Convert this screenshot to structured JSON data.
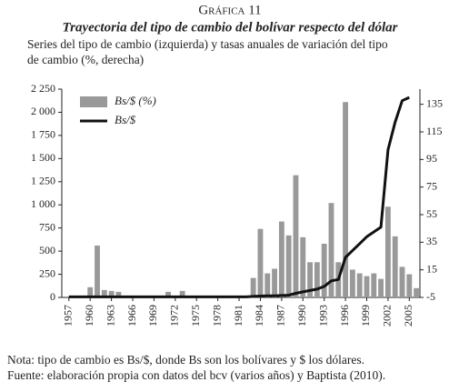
{
  "chart_data": {
    "type": "bar_line",
    "label": "Gráfica 11",
    "title": "Trayectoria del tipo de cambio del bolívar respecto del dólar",
    "subtitle": [
      "Series del tipo de cambio (izquierda) y tasas anuales de variación del tipo",
      "de cambio (%, derecha)"
    ],
    "notes": [
      "Nota: tipo de cambio es Bs/$, donde Bs son los bolívares y $ los dólares.",
      "Fuente: elaboración propia con datos del bcv (varios años) y Baptista (2010)."
    ],
    "x": [
      1957,
      1958,
      1959,
      1960,
      1961,
      1962,
      1963,
      1964,
      1965,
      1966,
      1967,
      1968,
      1969,
      1970,
      1971,
      1972,
      1973,
      1974,
      1975,
      1976,
      1977,
      1978,
      1979,
      1980,
      1981,
      1982,
      1983,
      1984,
      1985,
      1986,
      1987,
      1988,
      1989,
      1990,
      1991,
      1992,
      1993,
      1994,
      1995,
      1996,
      1997,
      1998,
      1999,
      2000,
      2001,
      2002,
      2003,
      2004,
      2005,
      2006
    ],
    "xlim": [
      1956,
      2006.5
    ],
    "xticks": [
      1957,
      1960,
      1963,
      1966,
      1969,
      1972,
      1975,
      1978,
      1981,
      1984,
      1987,
      1990,
      1993,
      1996,
      1999,
      2002,
      2005
    ],
    "ylim": [
      0,
      2250
    ],
    "yticks": [
      0,
      250,
      500,
      750,
      {
        "value": 1000,
        "label": "1 000"
      },
      {
        "value": 1250,
        "label": "1 250"
      },
      {
        "value": 1500,
        "label": "1 500"
      },
      {
        "value": 1750,
        "label": "1 750"
      },
      {
        "value": 2000,
        "label": "2 000"
      },
      {
        "value": 2250,
        "label": "2 250"
      }
    ],
    "y2lim": [
      -5,
      146
    ],
    "y2ticks": [
      -5,
      15,
      35,
      55,
      75,
      95,
      115,
      135
    ],
    "legend": "upper left",
    "series": [
      {
        "name": "Bs/$ (%)",
        "color": "#999999",
        "type": "bar",
        "values": [
          0,
          0,
          0,
          110,
          560,
          80,
          70,
          60,
          0,
          0,
          0,
          0,
          0,
          0,
          60,
          0,
          70,
          0,
          0,
          0,
          0,
          0,
          0,
          0,
          0,
          0,
          210,
          740,
          260,
          310,
          820,
          670,
          1320,
          650,
          380,
          380,
          580,
          1020,
          380,
          2110,
          300,
          260,
          230,
          260,
          200,
          980,
          660,
          330,
          250,
          100
        ]
      },
      {
        "name": "Bs/$",
        "color": "#111111",
        "type": "line",
        "axis": "y2",
        "values": [
          -4.6,
          -4.6,
          -4.6,
          -4.6,
          -4.6,
          -4.6,
          -4.6,
          -4.6,
          -4.6,
          -4.6,
          -4.6,
          -4.6,
          -4.6,
          -4.6,
          -4.6,
          -4.6,
          -4.6,
          -4.6,
          -4.6,
          -4.6,
          -4.6,
          -4.6,
          -4.6,
          -4.6,
          -4.6,
          -4.6,
          -4.3,
          -4,
          -3.9,
          -3.8,
          -3.6,
          -3.4,
          -2,
          -1,
          0,
          1,
          3,
          7,
          8,
          24,
          29,
          34,
          39,
          42.5,
          46,
          102,
          122,
          137.6,
          140,
          null
        ]
      }
    ]
  }
}
